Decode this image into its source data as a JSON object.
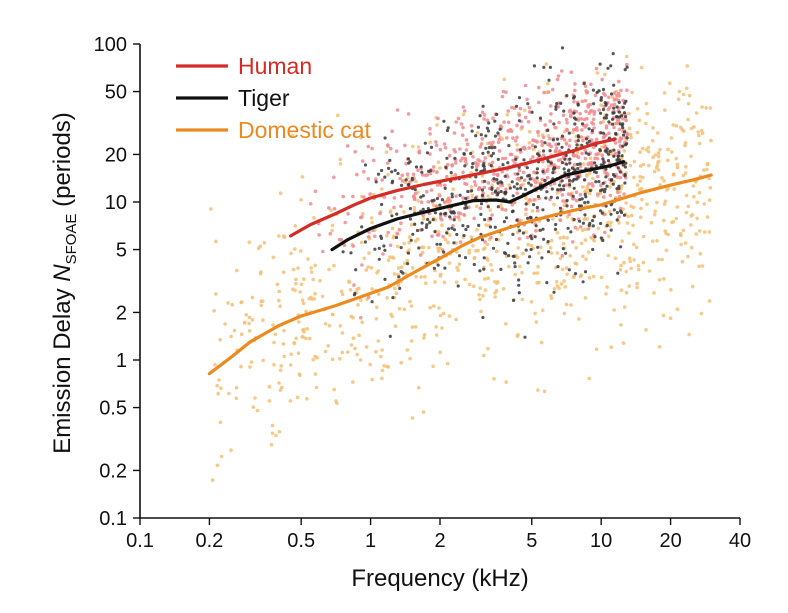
{
  "chart_data": {
    "type": "scatter",
    "x_scale": "log",
    "y_scale": "log",
    "xlim": [
      0.1,
      40
    ],
    "ylim": [
      0.1,
      100
    ],
    "xlabel": "Frequency (kHz)",
    "ylabel": {
      "prefix": "Emission Delay ",
      "symbol": "N",
      "subscript": "SFOAE",
      "suffix": " (periods)"
    },
    "x_ticks": [
      {
        "value": 0.1,
        "label": "0.1"
      },
      {
        "value": 0.2,
        "label": "0.2"
      },
      {
        "value": 0.5,
        "label": "0.5"
      },
      {
        "value": 1,
        "label": "1"
      },
      {
        "value": 2,
        "label": "2"
      },
      {
        "value": 5,
        "label": "5"
      },
      {
        "value": 10,
        "label": "10"
      },
      {
        "value": 20,
        "label": "20"
      },
      {
        "value": 40,
        "label": "40"
      }
    ],
    "y_ticks": [
      {
        "value": 0.1,
        "label": "0.1"
      },
      {
        "value": 0.2,
        "label": "0.2"
      },
      {
        "value": 0.5,
        "label": "0.5"
      },
      {
        "value": 1,
        "label": "1"
      },
      {
        "value": 2,
        "label": "2"
      },
      {
        "value": 5,
        "label": "5"
      },
      {
        "value": 10,
        "label": "10"
      },
      {
        "value": 20,
        "label": "20"
      },
      {
        "value": 50,
        "label": "50"
      },
      {
        "value": 100,
        "label": "100"
      }
    ],
    "legend_position": "top-left",
    "series": [
      {
        "name": "Human",
        "line_color": "#d42b25",
        "point_color": "#f28a8f",
        "trend": [
          [
            0.45,
            6.1
          ],
          [
            0.55,
            7.2
          ],
          [
            0.7,
            8.4
          ],
          [
            0.85,
            9.6
          ],
          [
            1.0,
            10.6
          ],
          [
            1.3,
            11.8
          ],
          [
            1.7,
            12.9
          ],
          [
            2.2,
            13.9
          ],
          [
            3.0,
            15.2
          ],
          [
            4.0,
            16.5
          ],
          [
            5.5,
            18.6
          ],
          [
            7.5,
            21.0
          ],
          [
            9.5,
            23.5
          ],
          [
            11.5,
            25.0
          ]
        ],
        "scatter_region": {
          "x": [
            0.5,
            13
          ],
          "around_trend_spread": 0.22,
          "count": 650
        }
      },
      {
        "name": "Tiger",
        "line_color": "#111111",
        "point_color": "#3a3a3a",
        "trend": [
          [
            0.68,
            5.0
          ],
          [
            0.8,
            5.8
          ],
          [
            1.0,
            6.8
          ],
          [
            1.3,
            7.8
          ],
          [
            1.7,
            8.6
          ],
          [
            2.2,
            9.4
          ],
          [
            2.8,
            10.2
          ],
          [
            3.5,
            10.3
          ],
          [
            4.0,
            10.0
          ],
          [
            4.5,
            10.8
          ],
          [
            5.5,
            12.5
          ],
          [
            7.0,
            14.8
          ],
          [
            9.0,
            16.0
          ],
          [
            11.0,
            17.0
          ],
          [
            12.5,
            18.0
          ]
        ],
        "scatter_region": {
          "x": [
            0.7,
            13
          ],
          "around_trend_spread": 0.3,
          "count": 600
        }
      },
      {
        "name": "Domestic cat",
        "line_color": "#ec8a1f",
        "point_color": "#f6c073",
        "trend": [
          [
            0.2,
            0.82
          ],
          [
            0.25,
            1.05
          ],
          [
            0.3,
            1.3
          ],
          [
            0.4,
            1.65
          ],
          [
            0.5,
            1.9
          ],
          [
            0.7,
            2.2
          ],
          [
            0.9,
            2.5
          ],
          [
            1.2,
            2.9
          ],
          [
            1.5,
            3.5
          ],
          [
            2.0,
            4.4
          ],
          [
            2.5,
            5.3
          ],
          [
            3.0,
            6.0
          ],
          [
            4.0,
            6.9
          ],
          [
            5.0,
            7.6
          ],
          [
            6.5,
            8.4
          ],
          [
            8.0,
            9.0
          ],
          [
            10.0,
            9.6
          ],
          [
            12.0,
            10.4
          ],
          [
            15.0,
            11.5
          ],
          [
            20.0,
            12.8
          ],
          [
            25.0,
            13.8
          ],
          [
            30.0,
            14.8
          ]
        ],
        "scatter_region": {
          "x": [
            0.2,
            30
          ],
          "around_trend_spread": 0.38,
          "count": 900
        }
      }
    ]
  }
}
